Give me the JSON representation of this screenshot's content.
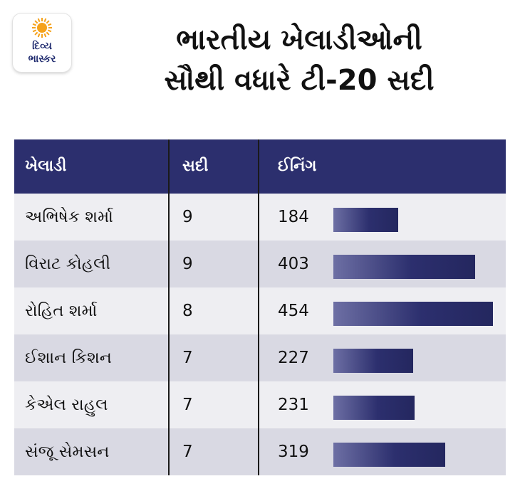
{
  "logo": {
    "line1": "દિવ્ય",
    "line2": "ભાસ્કર"
  },
  "title": {
    "line1": "ભારતીય ખેલાડીઓની",
    "line2": "સૌથી વધારે ટી-20 સદી"
  },
  "colors": {
    "header_bg": "#2c2f6e",
    "row_light": "#eeeef2",
    "row_dark": "#d9d9e3",
    "bar": "#2c2f6e",
    "sun": "#f5a21b"
  },
  "chart_data": {
    "type": "table",
    "title": "ભારતીય ખેલાડીઓની સૌથી વધારે ટી-20 સદી",
    "columns": [
      "ખેલાડી",
      "સદી",
      "ઈનિંગ"
    ],
    "rows": [
      {
        "player": "અભિષેક શર્મા",
        "centuries": "9",
        "innings": "184"
      },
      {
        "player": "વિરાટ કોહલી",
        "centuries": "9",
        "innings": "403"
      },
      {
        "player": "રોહિત શર્મા",
        "centuries": "8",
        "innings": "454"
      },
      {
        "player": "ઈશાન કિશન",
        "centuries": "7",
        "innings": "227"
      },
      {
        "player": "કેએલ રાહુલ",
        "centuries": "7",
        "innings": "231"
      },
      {
        "player": "સંજૂ સેમસન",
        "centuries": "7",
        "innings": "319"
      }
    ],
    "bar_series": {
      "column": "ઈનિંગ",
      "values": [
        184,
        403,
        454,
        227,
        231,
        319
      ],
      "xlim": [
        0,
        454
      ]
    }
  }
}
